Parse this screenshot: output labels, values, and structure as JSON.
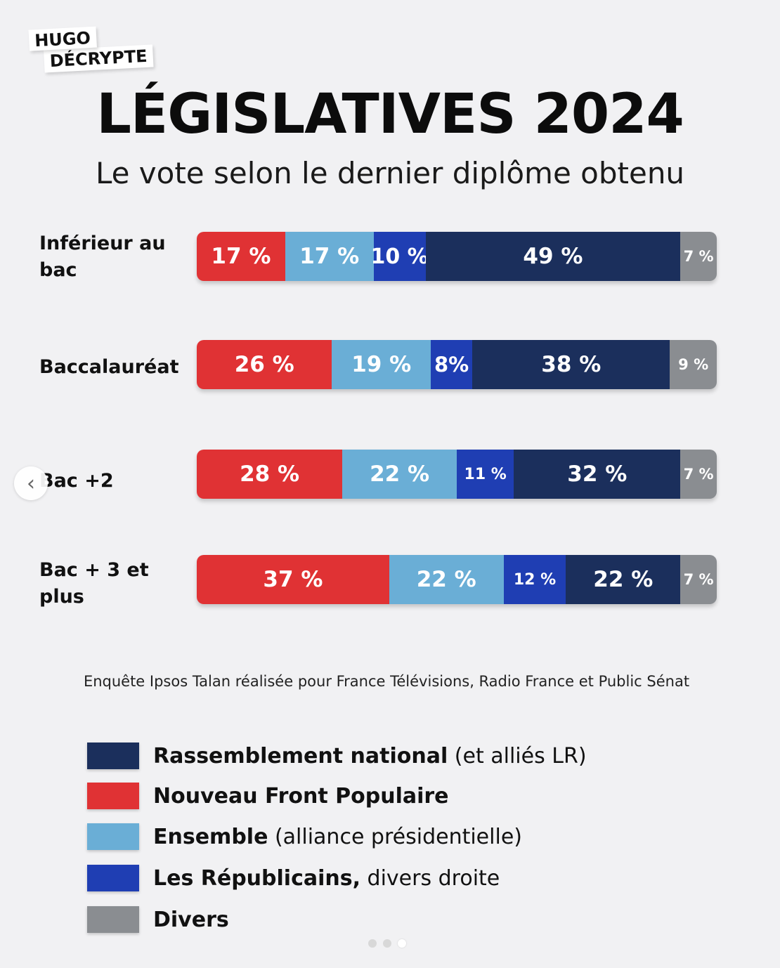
{
  "logo": {
    "line1": "HUGO",
    "line2": "DÉCRYPTE"
  },
  "header": {
    "title": "LÉGISLATIVES 2024",
    "subtitle": "Le vote selon le dernier diplôme obtenu"
  },
  "chart_data": {
    "type": "bar",
    "orientation": "horizontal",
    "stacked": true,
    "title": "LÉGISLATIVES 2024",
    "subtitle": "Le vote selon le dernier diplôme obtenu",
    "categories": [
      "Inférieur au bac",
      "Baccalauréat",
      "Bac +2",
      "Bac + 3 et plus"
    ],
    "series": [
      {
        "name": "Nouveau Front Populaire",
        "color": "#e03234",
        "values": [
          17,
          26,
          28,
          37
        ],
        "labels": [
          "17 %",
          "26 %",
          "28 %",
          "37 %"
        ]
      },
      {
        "name": "Ensemble",
        "color": "#6aaed6",
        "values": [
          17,
          19,
          22,
          22
        ],
        "labels": [
          "17 %",
          "19 %",
          "22 %",
          "22 %"
        ]
      },
      {
        "name": "Les Républicains, divers droite",
        "color": "#1f3eb3",
        "values": [
          10,
          8,
          11,
          12
        ],
        "labels": [
          "10 %",
          "8%",
          "11 %",
          "12 %"
        ]
      },
      {
        "name": "Rassemblement national",
        "color": "#1b2f5c",
        "values": [
          49,
          38,
          32,
          22
        ],
        "labels": [
          "49 %",
          "38 %",
          "32 %",
          "22 %"
        ]
      },
      {
        "name": "Divers",
        "color": "#8a8d91",
        "values": [
          7,
          9,
          7,
          7
        ],
        "labels": [
          "7 %",
          "9 %",
          "7 %",
          "7 %"
        ]
      }
    ],
    "unit": "%"
  },
  "source": "Enquête Ipsos Talan réalisée pour France Télévisions, Radio France et Public Sénat",
  "legend": [
    {
      "bold": "Rassemblement national",
      "normal": " (et alliés LR)",
      "color": "#1b2f5c"
    },
    {
      "bold": "Nouveau Front Populaire",
      "normal": "",
      "color": "#e03234"
    },
    {
      "bold": "Ensemble",
      "normal": " (alliance présidentielle)",
      "color": "#6aaed6"
    },
    {
      "bold": "Les Républicains,",
      "normal": " divers droite",
      "color": "#1f3eb3"
    },
    {
      "bold": "Divers",
      "normal": "",
      "color": "#8a8d91"
    }
  ],
  "nav": {
    "prev_icon": "‹"
  }
}
